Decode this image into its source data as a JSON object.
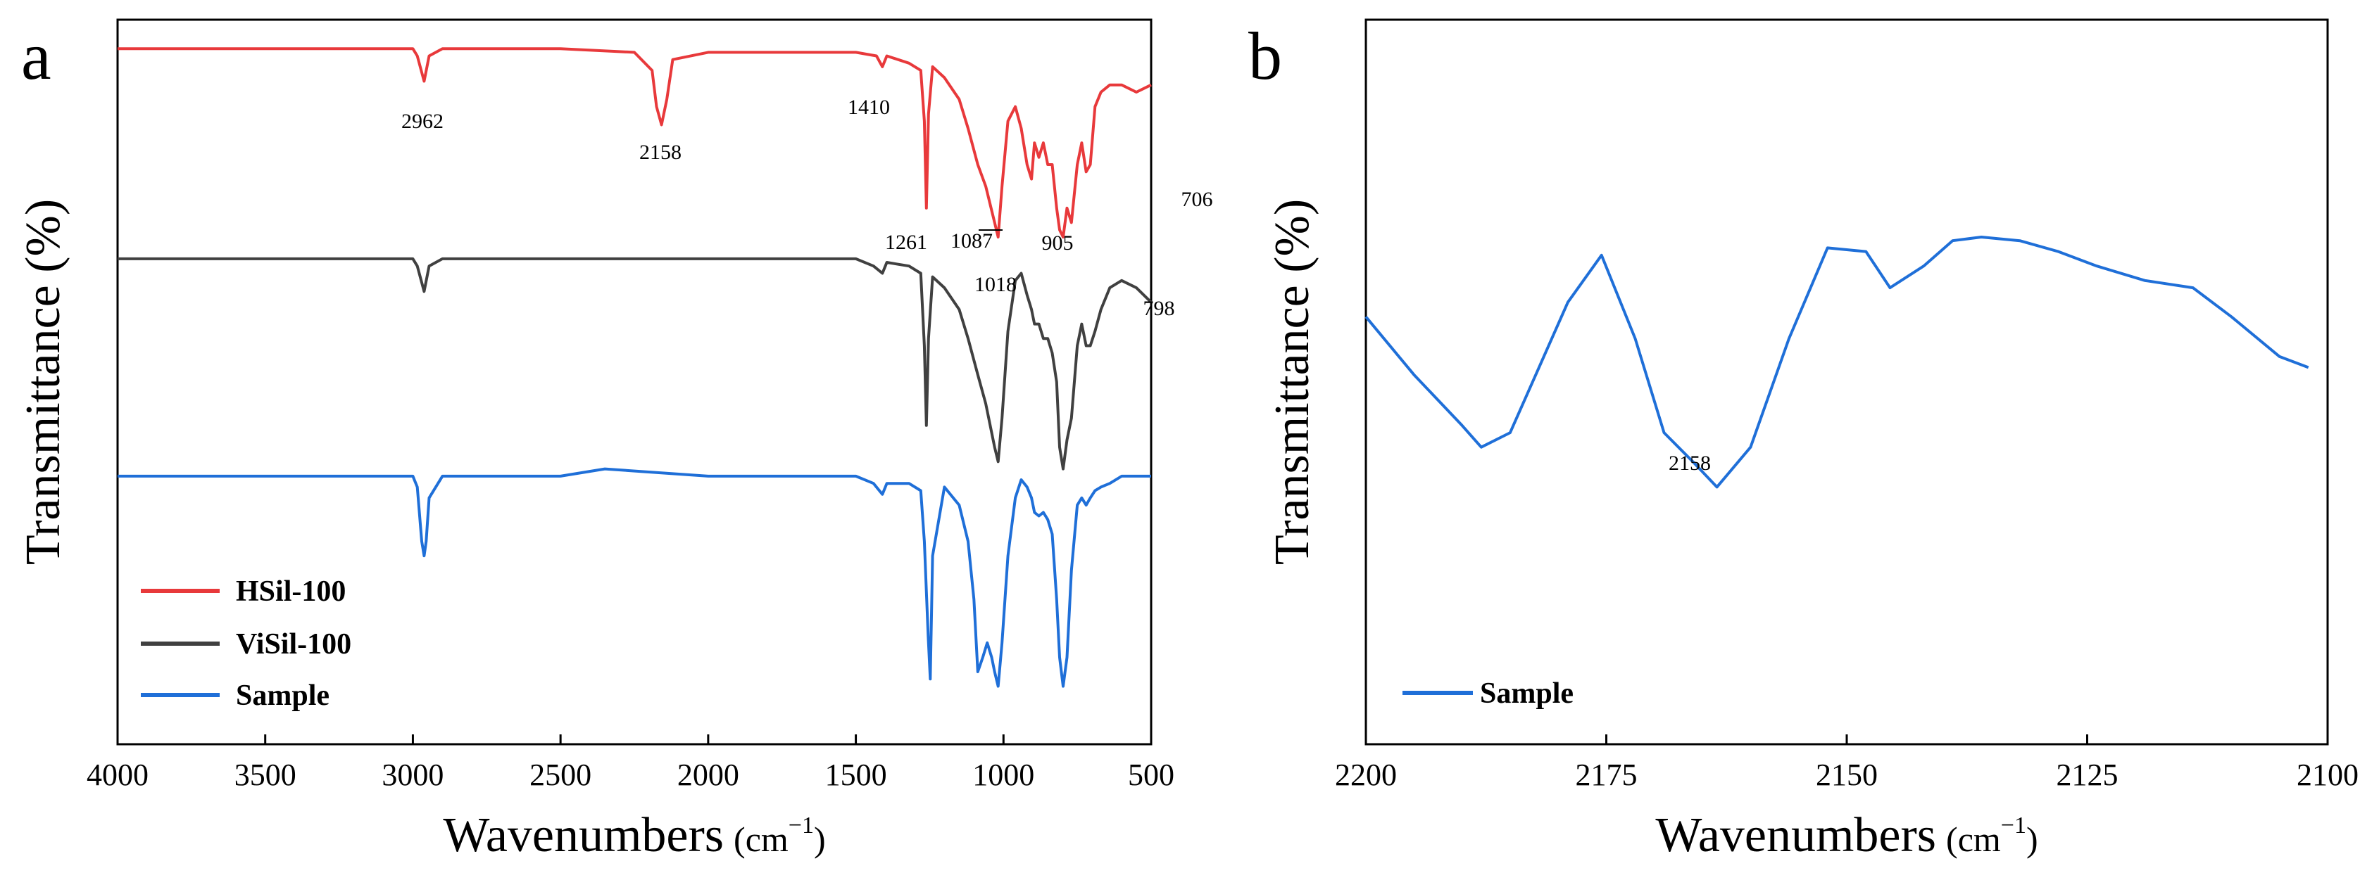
{
  "chart_data": [
    {
      "panel": "a",
      "type": "line",
      "xlabel": "Wavenumbers",
      "xunit_base": "cm",
      "xunit_exp": "−1",
      "ylabel": "Transmittance (%)",
      "xlim": [
        4000,
        500
      ],
      "xticks": [
        4000,
        3500,
        3000,
        2500,
        2000,
        1500,
        1000,
        500
      ],
      "ylim": [
        0,
        100
      ],
      "yticks_shown": false,
      "legend_position": "bottom-left",
      "series": [
        {
          "name": "HSil-100",
          "color": "#e8393b",
          "x": [
            4000,
            3500,
            3000,
            2985,
            2962,
            2945,
            2900,
            2500,
            2250,
            2190,
            2175,
            2158,
            2140,
            2120,
            2000,
            1500,
            1430,
            1410,
            1395,
            1320,
            1280,
            1268,
            1261,
            1254,
            1240,
            1200,
            1150,
            1120,
            1087,
            1060,
            1030,
            1018,
            1005,
            985,
            960,
            940,
            920,
            905,
            895,
            880,
            865,
            850,
            835,
            820,
            810,
            798,
            785,
            770,
            750,
            735,
            720,
            706,
            690,
            670,
            640,
            600,
            550,
            500
          ],
          "y": [
            96,
            96,
            96,
            95,
            91.5,
            95,
            96,
            96,
            95.5,
            93,
            88,
            85.5,
            89,
            94.5,
            95.5,
            95.5,
            95,
            93.5,
            95,
            94,
            93,
            86,
            74,
            87,
            93.5,
            92,
            89,
            85,
            80,
            77,
            72,
            70,
            77,
            86,
            88,
            85,
            80,
            78,
            83,
            81,
            83,
            80,
            80,
            74,
            71,
            70,
            74,
            72,
            80,
            83,
            79,
            80,
            88,
            90,
            91,
            91,
            90,
            91
          ]
        },
        {
          "name": "ViSil-100",
          "color": "#404040",
          "x": [
            4000,
            3500,
            3000,
            2985,
            2962,
            2945,
            2900,
            2500,
            2000,
            1500,
            1440,
            1410,
            1395,
            1320,
            1280,
            1268,
            1261,
            1254,
            1240,
            1200,
            1150,
            1120,
            1087,
            1060,
            1030,
            1018,
            1005,
            985,
            960,
            940,
            920,
            905,
            895,
            880,
            865,
            850,
            835,
            820,
            810,
            798,
            785,
            770,
            750,
            735,
            720,
            706,
            690,
            670,
            640,
            600,
            550,
            500
          ],
          "y": [
            67,
            67,
            67,
            66,
            62.5,
            66,
            67,
            67,
            67,
            67,
            66,
            65,
            66.5,
            66,
            65,
            55,
            44,
            56,
            64.5,
            63,
            60,
            56,
            51,
            47,
            41,
            39,
            45,
            57,
            64,
            65,
            62,
            60,
            58,
            58,
            56,
            56,
            54,
            50,
            41,
            38,
            42,
            45,
            55,
            58,
            55,
            55,
            57,
            60,
            63,
            64,
            63,
            61
          ]
        },
        {
          "name": "Sample",
          "color": "#1f6fd8",
          "x": [
            4000,
            3500,
            3000,
            2985,
            2970,
            2962,
            2955,
            2945,
            2900,
            2500,
            2350,
            2000,
            1500,
            1440,
            1410,
            1395,
            1320,
            1280,
            1268,
            1255,
            1248,
            1240,
            1200,
            1150,
            1120,
            1100,
            1087,
            1070,
            1055,
            1040,
            1030,
            1018,
            1005,
            985,
            960,
            940,
            920,
            905,
            895,
            880,
            865,
            850,
            835,
            820,
            810,
            798,
            785,
            770,
            750,
            735,
            720,
            706,
            690,
            670,
            640,
            600,
            550,
            500
          ],
          "y": [
            37,
            37,
            37,
            35.5,
            28,
            26,
            28,
            34,
            37,
            37,
            38,
            37,
            37,
            36,
            34.5,
            36,
            36,
            35,
            28,
            15,
            9,
            26,
            35.5,
            33,
            28,
            20,
            10,
            12,
            14,
            12,
            10,
            8,
            14,
            26,
            34,
            36.5,
            35.5,
            34,
            32,
            31.5,
            32,
            31,
            29,
            20,
            12,
            8,
            12,
            24,
            33,
            34,
            33,
            34,
            35,
            35.5,
            36,
            37,
            37,
            37
          ]
        }
      ],
      "annotations": [
        {
          "text": "2962",
          "x": 2962
        },
        {
          "text": "2158",
          "x": 2158
        },
        {
          "text": "1410",
          "x": 1410
        },
        {
          "text": "1261",
          "x": 1261
        },
        {
          "text": "1087",
          "x": 1087
        },
        {
          "text": "1018",
          "x": 1018
        },
        {
          "text": "905",
          "x": 905
        },
        {
          "text": "798",
          "x": 798
        },
        {
          "text": "706",
          "x": 706
        }
      ]
    },
    {
      "panel": "b",
      "type": "line",
      "xlabel": "Wavenumbers",
      "xunit_base": "cm",
      "xunit_exp": "−1",
      "ylabel": "Transmittance (%)",
      "xlim": [
        2200,
        2100
      ],
      "xticks": [
        2200,
        2175,
        2150,
        2125,
        2100
      ],
      "ylim": [
        0,
        100
      ],
      "yticks_shown": false,
      "legend_position": "bottom-left",
      "series": [
        {
          "name": "Sample",
          "color": "#1f6fd8",
          "x": [
            2200,
            2195,
            2190,
            2188,
            2185,
            2182,
            2179,
            2175.5,
            2172,
            2169,
            2166,
            2163.5,
            2160,
            2156,
            2152,
            2148,
            2145.5,
            2142,
            2139,
            2136,
            2132,
            2128,
            2124,
            2119,
            2114,
            2110,
            2105,
            2102
          ],
          "y": [
            59,
            51,
            44,
            41,
            43,
            52,
            61,
            67.5,
            56,
            43,
            39,
            35.5,
            41,
            56,
            68.5,
            68,
            63,
            66,
            69.5,
            70,
            69.5,
            68,
            66,
            64,
            63,
            59,
            53.5,
            52
          ]
        }
      ],
      "annotations": [
        {
          "text": "2158",
          "x": 2163.5
        }
      ]
    }
  ]
}
